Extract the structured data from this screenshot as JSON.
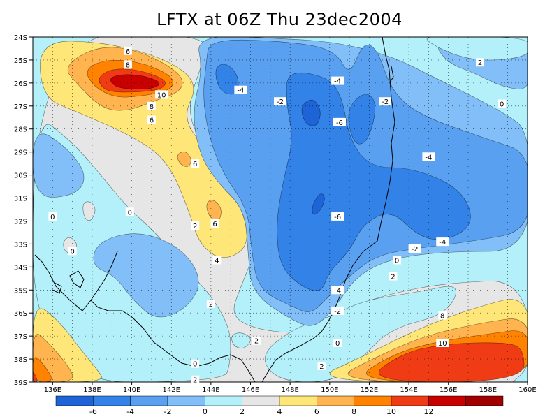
{
  "title": "LFTX at 06Z Thu 23dec2004",
  "map": {
    "lat_labels": [
      "24S",
      "25S",
      "26S",
      "27S",
      "28S",
      "29S",
      "30S",
      "31S",
      "32S",
      "33S",
      "34S",
      "35S",
      "36S",
      "37S",
      "38S",
      "39S"
    ],
    "lon_labels": [
      "136E",
      "138E",
      "140E",
      "142E",
      "144E",
      "146E",
      "148E",
      "150E",
      "152E",
      "154E",
      "156E",
      "158E",
      "160E"
    ],
    "contour_labels": [
      {
        "text": "6",
        "lon": 139.8,
        "lat": -24.6
      },
      {
        "text": "8",
        "lon": 139.8,
        "lat": -25.2
      },
      {
        "text": "10",
        "lon": 141.5,
        "lat": -26.5
      },
      {
        "text": "8",
        "lon": 141.0,
        "lat": -27.0
      },
      {
        "text": "6",
        "lon": 141.0,
        "lat": -27.6
      },
      {
        "text": "6",
        "lon": 143.2,
        "lat": -29.5
      },
      {
        "text": "6",
        "lon": 144.2,
        "lat": -32.1
      },
      {
        "text": "4",
        "lon": 144.3,
        "lat": -33.7
      },
      {
        "text": "2",
        "lon": 143.2,
        "lat": -32.2
      },
      {
        "text": "0",
        "lon": 136.0,
        "lat": -31.8
      },
      {
        "text": "0",
        "lon": 139.9,
        "lat": -31.6
      },
      {
        "text": "0",
        "lon": 137.0,
        "lat": -33.3
      },
      {
        "text": "-4",
        "lon": 145.5,
        "lat": -26.3
      },
      {
        "text": "-2",
        "lon": 147.5,
        "lat": -26.8
      },
      {
        "text": "-4",
        "lon": 150.4,
        "lat": -25.9
      },
      {
        "text": "-6",
        "lon": 150.5,
        "lat": -27.7
      },
      {
        "text": "-2",
        "lon": 152.8,
        "lat": -26.8
      },
      {
        "text": "-4",
        "lon": 155.0,
        "lat": -29.2
      },
      {
        "text": "-6",
        "lon": 150.4,
        "lat": -31.8
      },
      {
        "text": "-2",
        "lon": 154.3,
        "lat": -33.2
      },
      {
        "text": "-4",
        "lon": 155.7,
        "lat": -32.9
      },
      {
        "text": "0",
        "lon": 153.4,
        "lat": -33.7
      },
      {
        "text": "2",
        "lon": 153.2,
        "lat": -34.4
      },
      {
        "text": "-4",
        "lon": 150.4,
        "lat": -35.0
      },
      {
        "text": "-2",
        "lon": 150.4,
        "lat": -35.9
      },
      {
        "text": "0",
        "lon": 150.4,
        "lat": -37.3
      },
      {
        "text": "2",
        "lon": 149.6,
        "lat": -38.3
      },
      {
        "text": "2",
        "lon": 144.0,
        "lat": -35.6
      },
      {
        "text": "2",
        "lon": 146.3,
        "lat": -37.2
      },
      {
        "text": "0",
        "lon": 143.2,
        "lat": -38.2
      },
      {
        "text": "2",
        "lon": 143.2,
        "lat": -38.9
      },
      {
        "text": "8",
        "lon": 155.7,
        "lat": -36.1
      },
      {
        "text": "10",
        "lon": 155.7,
        "lat": -37.3
      },
      {
        "text": "2",
        "lon": 157.6,
        "lat": -25.1
      },
      {
        "text": "0",
        "lon": 158.7,
        "lat": -26.9
      }
    ]
  },
  "colorbar": {
    "labels": [
      "-6",
      "-4",
      "-2",
      "0",
      "2",
      "4",
      "6",
      "8",
      "10",
      "12"
    ],
    "colors": [
      "#1e64d6",
      "#3282e8",
      "#5aa0f0",
      "#82bef8",
      "#b4f0fa",
      "#e6e6e6",
      "#ffe678",
      "#ffb450",
      "#ff8200",
      "#f03c14",
      "#c80000",
      "#a00000"
    ]
  },
  "fill_colors": {
    "c_m8": "#1e64d6",
    "c_m6": "#1e64d6",
    "c_m4": "#3282e8",
    "c_m2": "#5aa0f0",
    "c_0": "#82bef8",
    "c_2": "#b4f0fa",
    "c_4": "#e6e6e6",
    "c_6": "#ffe678",
    "c_8": "#ffb450",
    "c_10": "#ff8200",
    "c_12": "#f03c14",
    "c_14": "#c80000"
  }
}
